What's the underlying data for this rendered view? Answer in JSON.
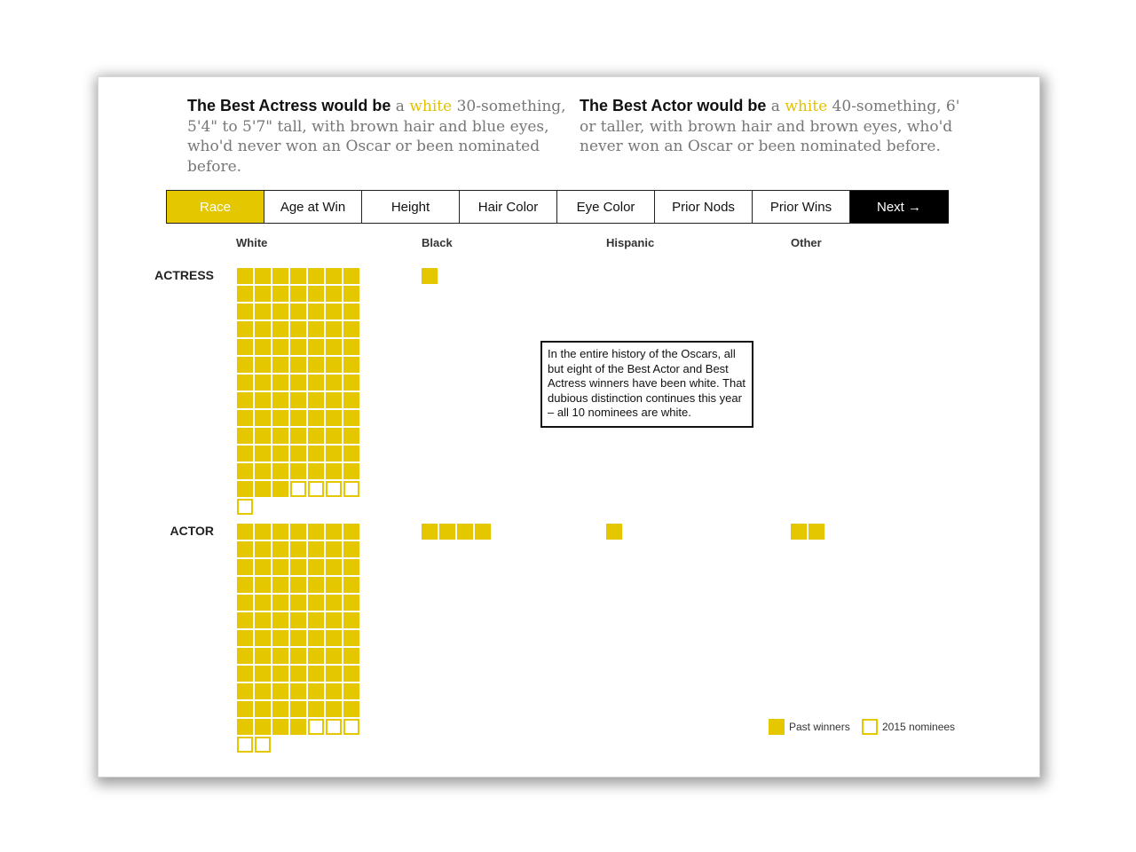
{
  "headlines": {
    "actress": {
      "lead": "The Best Actress would be",
      "pre": " a ",
      "accent": "white",
      "rest": " 30-something, 5'4\" to 5'7\" tall, with brown hair and blue eyes, who'd never won an Oscar or been nominated before."
    },
    "actor": {
      "lead": "The Best Actor would be",
      "pre": " a ",
      "accent": "white",
      "rest": " 40-something, 6' or taller, with brown hair and brown eyes, who'd never won an Oscar or been nominated before."
    }
  },
  "tabs": [
    {
      "label": "Race",
      "active": true
    },
    {
      "label": "Age at Win",
      "active": false
    },
    {
      "label": "Height",
      "active": false
    },
    {
      "label": "Hair Color",
      "active": false
    },
    {
      "label": "Eye Color",
      "active": false
    },
    {
      "label": "Prior Nods",
      "active": false
    },
    {
      "label": "Prior Wins",
      "active": false
    }
  ],
  "next_label": "Next →",
  "columns": [
    "White",
    "Black",
    "Hispanic",
    "Other"
  ],
  "rows": [
    "ACTRESS",
    "ACTOR"
  ],
  "annotation": "In the entire history of the Oscars, all but eight of the Best Actor and Best Actress winners have been white. That dubious distinction continues this year – all 10 nominees are white.",
  "legend": {
    "winners": "Past winners",
    "nominees": "2015 nominees"
  },
  "colors": {
    "accent": "#e5c700",
    "text": "#111111",
    "muted": "#777777"
  },
  "chart_data": {
    "type": "waffle",
    "title": "Race",
    "categories": [
      "White",
      "Black",
      "Hispanic",
      "Other"
    ],
    "series": [
      {
        "name": "Actress - Past winners",
        "values": [
          87,
          1,
          0,
          0
        ]
      },
      {
        "name": "Actress - 2015 nominees",
        "values": [
          5,
          0,
          0,
          0
        ]
      },
      {
        "name": "Actor - Past winners",
        "values": [
          81,
          4,
          1,
          2
        ]
      },
      {
        "name": "Actor - 2015 nominees",
        "values": [
          5,
          0,
          0,
          0
        ]
      }
    ],
    "columns_per_block": 7,
    "legend": [
      "Past winners",
      "2015 nominees"
    ],
    "annotation": "In the entire history of the Oscars, all but eight of the Best Actor and Best Actress winners have been white. That dubious distinction continues this year – all 10 nominees are white."
  }
}
